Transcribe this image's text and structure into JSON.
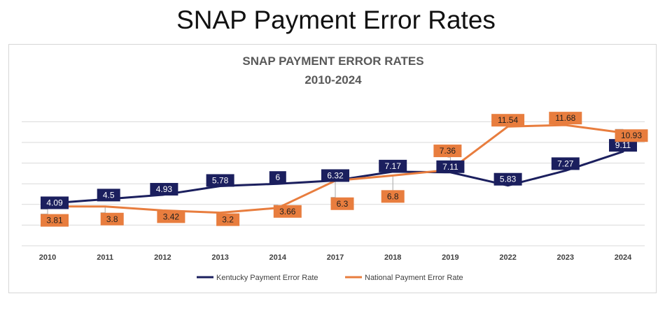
{
  "slide": {
    "title": "SNAP Payment Error Rates"
  },
  "chart_data": {
    "type": "line",
    "title": "SNAP PAYMENT ERROR RATES",
    "subtitle": "2010-2024",
    "categories": [
      "2010",
      "2011",
      "2012",
      "2013",
      "2014",
      "2017",
      "2018",
      "2019",
      "2022",
      "2023",
      "2024"
    ],
    "ylim": [
      0,
      14
    ],
    "gridlines": [
      0,
      2,
      4,
      6,
      8,
      10,
      12
    ],
    "grid": true,
    "legend_position": "bottom",
    "series": [
      {
        "name": "Kentucky Payment Error Rate",
        "color": "#1b1f5e",
        "values": [
          4.09,
          4.5,
          4.93,
          5.78,
          6,
          6.32,
          7.17,
          7.11,
          5.83,
          7.27,
          9.11
        ],
        "labels": [
          "4.09",
          "4.5",
          "4.93",
          "5.78",
          "6",
          "6.32",
          "7.17",
          "7.11",
          "5.83",
          "7.27",
          "9.11"
        ]
      },
      {
        "name": "National Payment Error Rate",
        "color": "#e87d3e",
        "values": [
          3.81,
          3.8,
          3.42,
          3.2,
          3.66,
          6.3,
          6.8,
          7.36,
          11.54,
          11.68,
          10.93
        ],
        "labels": [
          "3.81",
          "3.8",
          "3.42",
          "3.2",
          "3.66",
          "6.3",
          "6.8",
          "7.36",
          "11.54",
          "11.68",
          "10.93"
        ]
      }
    ]
  }
}
